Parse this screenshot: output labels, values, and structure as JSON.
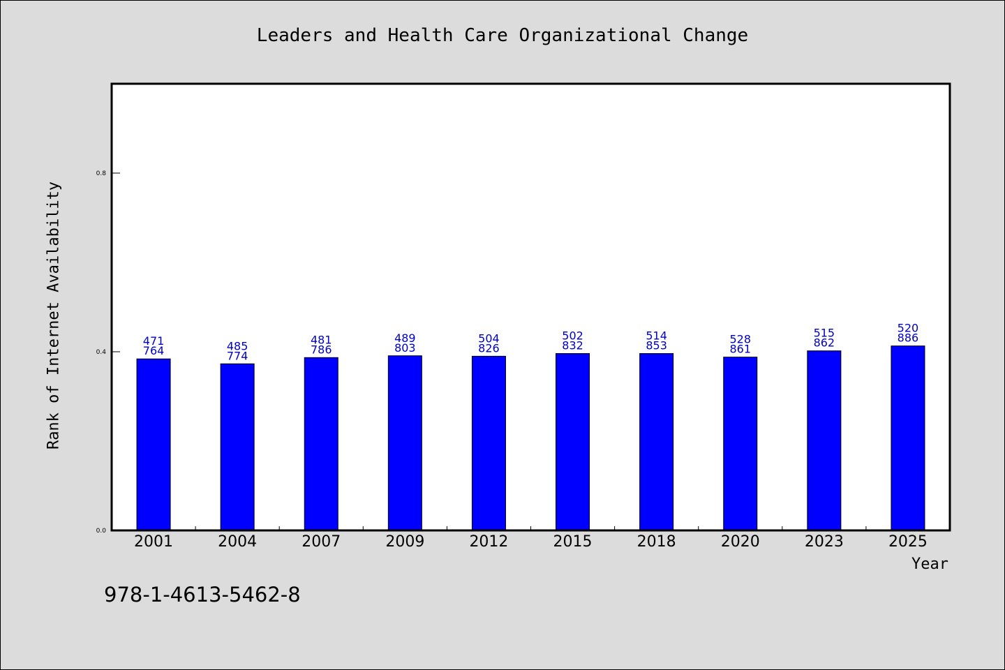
{
  "chart_data": {
    "type": "bar",
    "title": "Leaders and Health Care Organizational Change",
    "xlabel": "Year",
    "ylabel": "Rank of Internet Availability",
    "categories": [
      "2001",
      "2004",
      "2007",
      "2009",
      "2012",
      "2015",
      "2018",
      "2020",
      "2023",
      "2025"
    ],
    "values": [
      0.384,
      0.373,
      0.387,
      0.391,
      0.39,
      0.396,
      0.396,
      0.388,
      0.402,
      0.413
    ],
    "bar_labels_top": [
      "471",
      "485",
      "481",
      "489",
      "504",
      "502",
      "514",
      "528",
      "515",
      "520"
    ],
    "bar_labels_bottom": [
      "764",
      "774",
      "786",
      "803",
      "826",
      "832",
      "853",
      "861",
      "862",
      "886"
    ],
    "yticks": [
      "0.0",
      "0.4",
      "0.8"
    ],
    "ylim": [
      0,
      1.0
    ],
    "grid": false,
    "bar_color": "#0000ff",
    "label_color": "#0000c8"
  },
  "footnote": "978-1-4613-5462-8"
}
